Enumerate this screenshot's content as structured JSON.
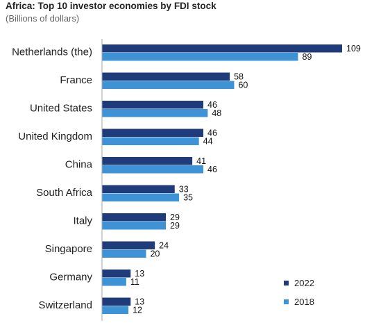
{
  "chart_data": {
    "type": "bar",
    "orientation": "horizontal",
    "title": "Africa: Top 10 investor economies by FDI stock",
    "subtitle": "(Billions of dollars)",
    "categories": [
      "Netherlands (the)",
      "France",
      "United States",
      "United Kingdom",
      "China",
      "South Africa",
      "Italy",
      "Singapore",
      "Germany",
      "Switzerland"
    ],
    "series": [
      {
        "name": "2022",
        "values": [
          109,
          58,
          46,
          46,
          41,
          33,
          29,
          24,
          13,
          13
        ],
        "color": "#1f3b7a"
      },
      {
        "name": "2018",
        "values": [
          89,
          60,
          48,
          44,
          46,
          35,
          29,
          20,
          11,
          12
        ],
        "color": "#3d93d6"
      }
    ],
    "xlim": [
      0,
      109
    ],
    "grid": false,
    "axis_line_color": "#a6a6a6",
    "legend": "bottom-right",
    "data_labels": true
  }
}
